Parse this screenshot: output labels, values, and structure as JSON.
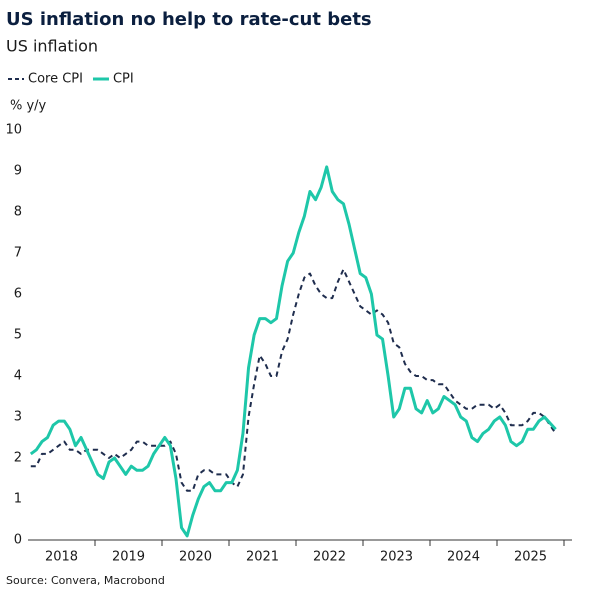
{
  "chart_data": {
    "type": "line",
    "title": "US inflation no help to rate-cut bets",
    "subtitle": "US inflation",
    "y_label": "% y/y",
    "source": "Source: Convera, Macrobond",
    "categories": [
      null,
      null,
      null,
      null,
      null,
      null,
      "2018",
      null,
      null,
      null,
      null,
      null,
      null,
      null,
      null,
      null,
      null,
      null,
      "2019",
      null,
      null,
      null,
      null,
      null,
      null,
      null,
      null,
      null,
      null,
      null,
      "2020",
      null,
      null,
      null,
      null,
      null,
      null,
      null,
      null,
      null,
      null,
      null,
      "2021",
      null,
      null,
      null,
      null,
      null,
      null,
      null,
      null,
      null,
      null,
      null,
      "2022",
      null,
      null,
      null,
      null,
      null,
      null,
      null,
      null,
      null,
      null,
      null,
      "2023",
      null,
      null,
      null,
      null,
      null,
      null,
      null,
      null,
      null,
      null,
      null,
      "2024",
      null,
      null,
      null,
      null,
      null,
      null,
      null,
      null,
      null,
      null,
      null,
      "2025",
      null,
      null,
      null,
      null
    ],
    "series": [
      {
        "name": "Core CPI",
        "color": "#1f2d4e",
        "style": "dashed",
        "values": [
          1.8,
          1.8,
          2.1,
          2.1,
          2.2,
          2.3,
          2.4,
          2.2,
          2.2,
          2.1,
          2.2,
          2.2,
          2.2,
          2.1,
          2.0,
          2.1,
          2.0,
          2.1,
          2.2,
          2.4,
          2.4,
          2.3,
          2.3,
          2.3,
          2.3,
          2.4,
          2.1,
          1.4,
          1.2,
          1.2,
          1.6,
          1.7,
          1.7,
          1.6,
          1.6,
          1.6,
          1.4,
          1.3,
          1.6,
          3.0,
          3.8,
          4.5,
          4.3,
          4.0,
          4.0,
          4.6,
          4.9,
          5.5,
          6.0,
          6.4,
          6.5,
          6.2,
          6.0,
          5.9,
          5.9,
          6.3,
          6.6,
          6.3,
          6.0,
          5.7,
          5.6,
          5.5,
          5.6,
          5.5,
          5.3,
          4.8,
          4.7,
          4.3,
          4.1,
          4.0,
          4.0,
          3.9,
          3.9,
          3.8,
          3.8,
          3.6,
          3.4,
          3.3,
          3.2,
          3.2,
          3.3,
          3.3,
          3.3,
          3.2,
          3.3,
          3.1,
          2.8,
          2.8,
          2.8,
          2.9,
          3.1,
          3.1,
          3.0,
          2.8,
          2.6
        ]
      },
      {
        "name": "CPI",
        "color": "#1ec7a9",
        "style": "solid",
        "values": [
          2.1,
          2.2,
          2.4,
          2.5,
          2.8,
          2.9,
          2.9,
          2.7,
          2.3,
          2.5,
          2.2,
          1.9,
          1.6,
          1.5,
          1.9,
          2.0,
          1.8,
          1.6,
          1.8,
          1.7,
          1.7,
          1.8,
          2.1,
          2.3,
          2.5,
          2.3,
          1.5,
          0.3,
          0.1,
          0.6,
          1.0,
          1.3,
          1.4,
          1.2,
          1.2,
          1.4,
          1.4,
          1.7,
          2.6,
          4.2,
          5.0,
          5.4,
          5.4,
          5.3,
          5.4,
          6.2,
          6.8,
          7.0,
          7.5,
          7.9,
          8.5,
          8.3,
          8.6,
          9.1,
          8.5,
          8.3,
          8.2,
          7.7,
          7.1,
          6.5,
          6.4,
          6.0,
          5.0,
          4.9,
          4.0,
          3.0,
          3.2,
          3.7,
          3.7,
          3.2,
          3.1,
          3.4,
          3.1,
          3.2,
          3.5,
          3.4,
          3.3,
          3.0,
          2.9,
          2.5,
          2.4,
          2.6,
          2.7,
          2.9,
          3.0,
          2.8,
          2.4,
          2.3,
          2.4,
          2.7,
          2.7,
          2.9,
          3.0,
          2.85,
          2.7
        ]
      }
    ],
    "ylim": [
      0,
      10
    ],
    "yticks": [
      0,
      1,
      2,
      3,
      4,
      5,
      6,
      7,
      8,
      9,
      10
    ],
    "grid": false,
    "legend": "top-left"
  }
}
